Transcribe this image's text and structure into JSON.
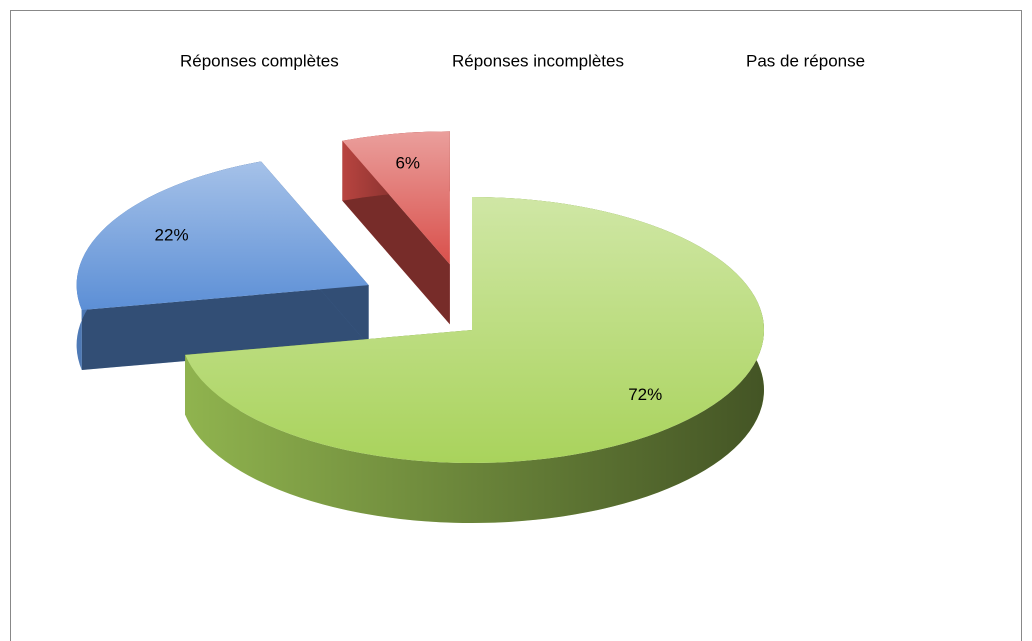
{
  "chart_data": {
    "type": "pie",
    "categories": [
      "Réponses complètes",
      "Réponses incomplètes",
      "Pas de réponse"
    ],
    "values": [
      72,
      22,
      6
    ],
    "value_labels": [
      "72%",
      "22%",
      "6%"
    ],
    "colors": [
      "#a9d35c",
      "#5c8fd6",
      "#d9504b"
    ],
    "legend": "top"
  }
}
